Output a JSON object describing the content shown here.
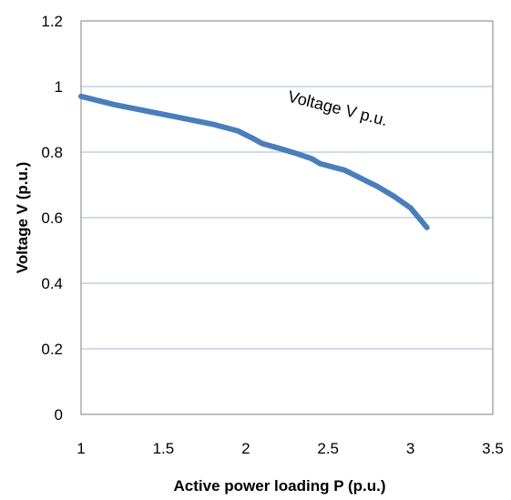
{
  "chart_data": {
    "type": "line",
    "title": "",
    "xlabel": "Active power loading P (p.u.)",
    "ylabel": "Voltage V (p.u.)",
    "xlim": [
      1,
      3.5
    ],
    "ylim": [
      0,
      1.2
    ],
    "xticks": [
      1,
      1.5,
      2,
      2.5,
      3,
      3.5
    ],
    "yticks": [
      0,
      0.2,
      0.4,
      0.6,
      0.8,
      1,
      1.2
    ],
    "xtick_labels": [
      "1",
      "1.5",
      "2",
      "2.5",
      "3",
      "3.5"
    ],
    "ytick_labels": [
      "0",
      "0.2",
      "0.4",
      "0.6",
      "0.8",
      "1",
      "1.2"
    ],
    "grid": "horizontal",
    "series": [
      {
        "name": "Voltage V p.u.",
        "color": "#4a7ebb",
        "x": [
          1.0,
          1.2,
          1.4,
          1.6,
          1.8,
          1.95,
          2.05,
          2.1,
          2.2,
          2.3,
          2.4,
          2.45,
          2.6,
          2.7,
          2.8,
          2.9,
          3.0,
          3.05,
          3.1
        ],
        "y": [
          0.97,
          0.945,
          0.925,
          0.905,
          0.885,
          0.865,
          0.84,
          0.826,
          0.812,
          0.797,
          0.78,
          0.765,
          0.745,
          0.72,
          0.695,
          0.665,
          0.63,
          0.6,
          0.57
        ]
      }
    ],
    "annotations": [
      {
        "text": "Voltage V p.u.",
        "x": 2.25,
        "y": 0.955
      }
    ]
  }
}
